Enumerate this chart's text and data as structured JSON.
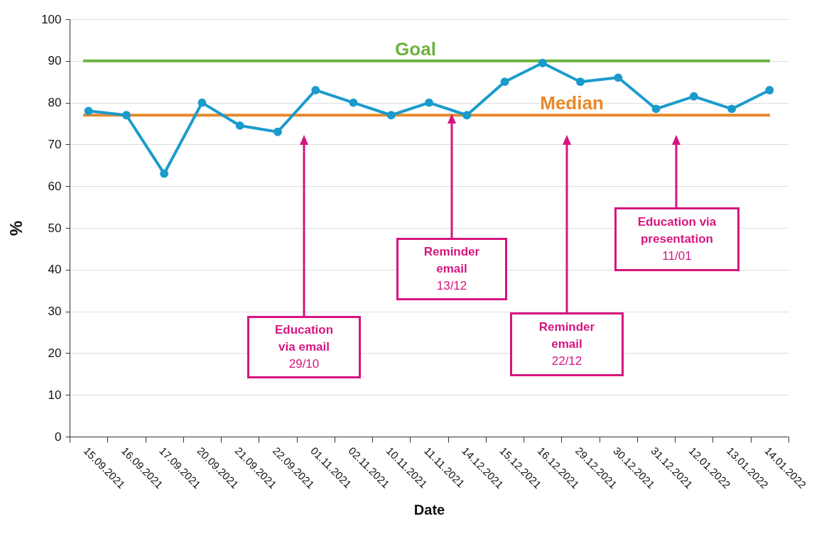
{
  "chart_data": {
    "type": "line",
    "xlabel": "Date",
    "ylabel": "%",
    "categories": [
      "15.09.2021",
      "16.09.2021",
      "17.09.2021",
      "20.09.2021",
      "21.09.2021",
      "22.09.2021",
      "01.11.2021",
      "02.11.2021",
      "10.11.2021",
      "11.11.2021",
      "14.12.2021",
      "15.12.2021",
      "16.12.2021",
      "29.12.2021",
      "30.12.2021",
      "31.12.2021",
      "12.01.2022",
      "13.01.2022",
      "14.01.2022"
    ],
    "series": [
      {
        "color": "#1a9bcc",
        "values": [
          78,
          77,
          63,
          80,
          74.5,
          73,
          83,
          80,
          77,
          80,
          77,
          85,
          89.5,
          85,
          86,
          78.5,
          81.5,
          78.5,
          83
        ]
      }
    ],
    "ylim": [
      0,
      100
    ],
    "yticks": [
      0,
      10,
      20,
      30,
      40,
      50,
      60,
      70,
      80,
      90,
      100
    ],
    "grid": "y",
    "marker": "circle",
    "line_style": "solid",
    "ref_lines": [
      {
        "axis": "y",
        "value": 90,
        "label": "Goal",
        "color": "#6cb33f"
      },
      {
        "axis": "y",
        "value": 77,
        "label": "Median",
        "color": "#e8892b"
      }
    ],
    "annotations": [
      "Education\nvia email\n29/10",
      "Reminder\nemail\n13/12",
      "Reminder\nemail\n22/12",
      "Education via\npresentation\n11/01"
    ]
  }
}
